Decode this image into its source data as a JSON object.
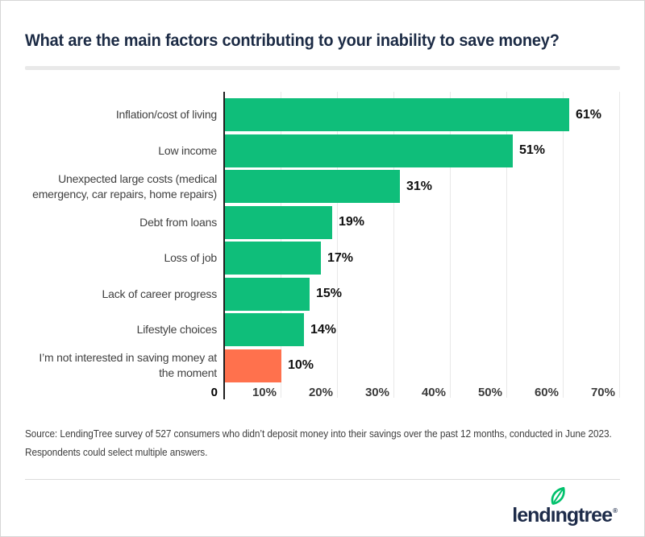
{
  "header": {
    "title": "What are the main factors contributing to your inability to save money?"
  },
  "chart_data": {
    "type": "bar",
    "orientation": "horizontal",
    "title": "What are the main factors contributing to your inability to save money?",
    "categories": [
      "Inflation/cost of living",
      "Low income",
      "Unexpected large costs (medical emergency, car repairs, home repairs)",
      "Debt from loans",
      "Loss of job",
      "Lack of career progress",
      "Lifestyle choices",
      "I’m not interested in saving money at the moment"
    ],
    "values": [
      61,
      51,
      31,
      19,
      17,
      15,
      14,
      10
    ],
    "value_labels": [
      "61%",
      "51%",
      "31%",
      "19%",
      "17%",
      "15%",
      "14%",
      "10%"
    ],
    "bar_colors": [
      "#0fbe7a",
      "#0fbe7a",
      "#0fbe7a",
      "#0fbe7a",
      "#0fbe7a",
      "#0fbe7a",
      "#0fbe7a",
      "#ff714d"
    ],
    "xlabel": "",
    "ylabel": "",
    "xlim": [
      0,
      70
    ],
    "x_ticks": [
      {
        "label": "0",
        "value": 0
      },
      {
        "label": "10%",
        "value": 10
      },
      {
        "label": "20%",
        "value": 20
      },
      {
        "label": "30%",
        "value": 30
      },
      {
        "label": "40%",
        "value": 40
      },
      {
        "label": "50%",
        "value": 50
      },
      {
        "label": "60%",
        "value": 60
      },
      {
        "label": "70%",
        "value": 70
      }
    ],
    "grid": "vertical gridlines at 10% intervals",
    "legend": false
  },
  "source": {
    "lines": [
      "Source: LendingTree survey of 527 consumers who didn’t deposit money into their savings over the past 12 months, conducted in June 2023.",
      "Respondents could select multiple answers."
    ]
  },
  "footer": {
    "logo_text": "lendıngtree",
    "registered_mark": "®"
  },
  "colors": {
    "bar_green": "#0fbe7a",
    "bar_orange": "#ff714d",
    "title_navy": "#1c2b45",
    "logo_navy": "#1d2b49",
    "leaf_green": "#00c16c",
    "gridline": "#e8e8e8",
    "axis": "#1f1f1f"
  }
}
